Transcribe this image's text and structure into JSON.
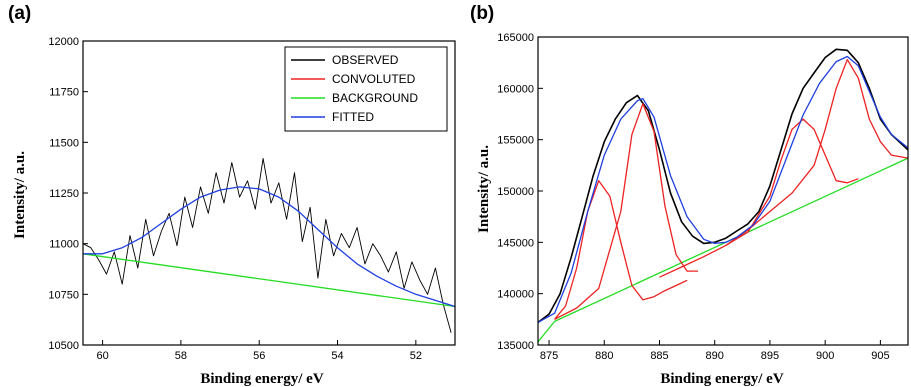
{
  "chart_data": [
    {
      "panel": "(a)",
      "type": "line",
      "xlabel": "Binding energy/ eV",
      "ylabel": "Intensity/ a.u.",
      "xlim": [
        60.5,
        51
      ],
      "ylim": [
        10500,
        12000
      ],
      "x_reversed": true,
      "xticks": [
        60,
        58,
        56,
        54,
        52
      ],
      "yticks": [
        10500,
        10750,
        11000,
        11250,
        11500,
        11750,
        12000
      ],
      "legend": {
        "position": "top-right",
        "entries": [
          "OBSERVED",
          "CONVOLUTED",
          "BACKGROUND",
          "FITTED"
        ]
      },
      "series": [
        {
          "name": "OBSERVED",
          "color": "#000000",
          "x": [
            60.5,
            60.3,
            60.1,
            59.9,
            59.7,
            59.5,
            59.3,
            59.1,
            58.9,
            58.7,
            58.5,
            58.3,
            58.1,
            57.9,
            57.7,
            57.5,
            57.3,
            57.1,
            56.9,
            56.7,
            56.5,
            56.3,
            56.1,
            55.9,
            55.7,
            55.5,
            55.3,
            55.1,
            54.9,
            54.7,
            54.5,
            54.3,
            54.1,
            53.9,
            53.7,
            53.5,
            53.3,
            53.1,
            52.9,
            52.7,
            52.5,
            52.3,
            52.1,
            51.9,
            51.7,
            51.5,
            51.3,
            51.1
          ],
          "y": [
            11000,
            10980,
            10920,
            10850,
            10960,
            10800,
            11040,
            10880,
            11120,
            10940,
            11060,
            11150,
            10990,
            11230,
            11080,
            11280,
            11150,
            11350,
            11200,
            11400,
            11230,
            11310,
            11170,
            11420,
            11200,
            11300,
            11120,
            11350,
            11010,
            11180,
            10830,
            11120,
            10940,
            11050,
            10980,
            11080,
            10900,
            11000,
            10940,
            10860,
            10960,
            10780,
            10910,
            10820,
            10750,
            10880,
            10700,
            10560
          ]
        },
        {
          "name": "BACKGROUND",
          "color": "#22dd22",
          "x": [
            60.5,
            51
          ],
          "y": [
            10950,
            10690
          ]
        },
        {
          "name": "FITTED",
          "color": "#1f3fe0",
          "x": [
            60.5,
            60.0,
            59.5,
            59.0,
            58.5,
            58.0,
            57.5,
            57.0,
            56.5,
            56.0,
            55.5,
            55.0,
            54.5,
            54.0,
            53.5,
            53.0,
            52.5,
            52.0,
            51.5,
            51.0
          ],
          "y": [
            10950,
            10950,
            10980,
            11030,
            11100,
            11170,
            11230,
            11265,
            11280,
            11270,
            11230,
            11160,
            11070,
            10980,
            10900,
            10840,
            10790,
            10750,
            10720,
            10690
          ]
        }
      ]
    },
    {
      "panel": "(b)",
      "type": "line",
      "xlabel": "Binding energy/ eV",
      "ylabel": "Intensity/ a.u.",
      "xlim": [
        874,
        907.5
      ],
      "ylim": [
        135000,
        165000
      ],
      "xticks": [
        875,
        880,
        885,
        890,
        895,
        900,
        905
      ],
      "yticks": [
        135000,
        140000,
        145000,
        150000,
        155000,
        160000,
        165000
      ],
      "series": [
        {
          "name": "OBSERVED",
          "color": "#000000",
          "x": [
            874,
            875,
            876,
            877,
            878,
            879,
            880,
            881,
            882,
            883,
            884,
            885,
            886,
            887,
            888,
            889,
            890,
            891,
            892,
            893,
            894,
            895,
            896,
            897,
            898,
            899,
            900,
            901,
            902,
            903,
            904,
            905,
            906,
            907,
            907.5
          ],
          "y": [
            137200,
            138000,
            140000,
            143500,
            147500,
            151500,
            154800,
            157000,
            158600,
            159300,
            157800,
            154000,
            149800,
            147000,
            145600,
            144900,
            145000,
            145400,
            146100,
            146800,
            148000,
            150500,
            154000,
            157500,
            160000,
            161500,
            163000,
            163800,
            163700,
            162500,
            160000,
            157000,
            155500,
            154500,
            154000
          ]
        },
        {
          "name": "BACKGROUND",
          "color": "#22dd22",
          "x": [
            874,
            875.5,
            907.5
          ],
          "y": [
            135300,
            137300,
            153200
          ]
        },
        {
          "name": "CONVOLUTED",
          "color": "#ee2222",
          "x": [
            875.5,
            876.5,
            877.5,
            878.5,
            879.5,
            880.5,
            881.5,
            882.5,
            883.5,
            884.5,
            885.5,
            886.5,
            887.5
          ],
          "y": [
            137500,
            138800,
            142500,
            148000,
            151000,
            149500,
            145000,
            140800,
            139400,
            139700,
            140300,
            140800,
            141300
          ]
        },
        {
          "name": "CONVOLUTED",
          "color": "#ee2222",
          "x": [
            875.5,
            877.5,
            879.5,
            881.5,
            882.5,
            883.5,
            884.5,
            885.5,
            886.5,
            887.5,
            888.5
          ],
          "y": [
            137500,
            138600,
            140500,
            148000,
            155500,
            158500,
            155800,
            148500,
            143800,
            142200,
            142200
          ]
        },
        {
          "name": "CONVOLUTED",
          "color": "#ee2222",
          "x": [
            885,
            887,
            889,
            891,
            893,
            895,
            896,
            897,
            898,
            899,
            900,
            901,
            902,
            903
          ],
          "y": [
            141600,
            142600,
            143600,
            144700,
            146000,
            149500,
            153000,
            156000,
            157000,
            156000,
            153500,
            151000,
            150800,
            151200
          ]
        },
        {
          "name": "CONVOLUTED",
          "color": "#ee2222",
          "x": [
            891,
            893,
            895,
            897,
            899,
            900,
            901,
            902,
            903,
            904,
            905,
            906,
            907.5
          ],
          "y": [
            144700,
            146200,
            148000,
            149800,
            152500,
            156000,
            160000,
            162800,
            161000,
            157000,
            154800,
            153500,
            153200
          ]
        },
        {
          "name": "FITTED",
          "color": "#1f3fe0",
          "x": [
            874,
            875.5,
            877,
            878.5,
            880,
            881.5,
            883,
            883.5,
            884.5,
            886,
            887.5,
            889,
            890,
            891,
            892,
            893.5,
            895,
            896.5,
            898,
            899.5,
            901,
            902,
            903,
            904,
            905,
            906,
            907.5
          ],
          "y": [
            137200,
            138100,
            142000,
            148000,
            153500,
            157000,
            158800,
            159000,
            157200,
            151500,
            147500,
            145300,
            144900,
            145000,
            145500,
            146700,
            149000,
            153200,
            157400,
            160500,
            162600,
            163100,
            162200,
            159700,
            157200,
            155500,
            154200
          ]
        }
      ]
    }
  ]
}
